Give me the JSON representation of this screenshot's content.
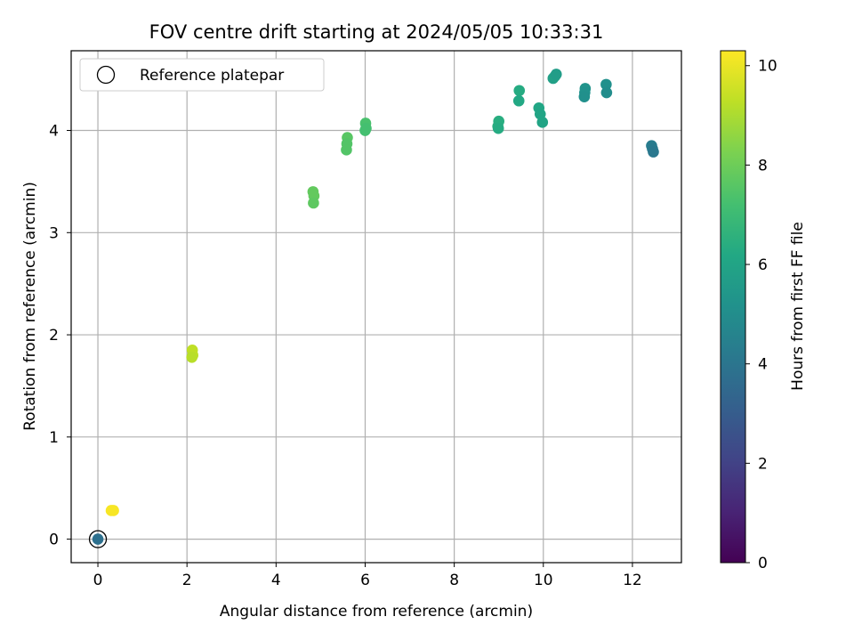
{
  "chart_data": {
    "type": "scatter",
    "title": "FOV centre drift starting at 2024/05/05 10:33:31",
    "xlabel": "Angular distance from reference (arcmin)",
    "ylabel": "Rotation from reference (arcmin)",
    "xlim": [
      -0.6,
      13.1
    ],
    "ylim": [
      -0.23,
      4.78
    ],
    "xticks": [
      0,
      2,
      4,
      6,
      8,
      10,
      12
    ],
    "yticks": [
      0,
      1,
      2,
      3,
      4
    ],
    "grid": true,
    "legend": {
      "label": "Reference platepar",
      "position": "top-left"
    },
    "reference_point": {
      "x": 0,
      "y": 0
    },
    "colorbar": {
      "label": "Hours from first FF file",
      "colormap": "viridis",
      "range": [
        0,
        10.3
      ],
      "ticks": [
        0,
        2,
        4,
        6,
        8,
        10
      ]
    },
    "points": [
      {
        "x": 0.0,
        "y": 0.0,
        "c": 3.8
      },
      {
        "x": 0.35,
        "y": 0.28,
        "c": 10.2
      },
      {
        "x": 0.3,
        "y": 0.28,
        "c": 10.2
      },
      {
        "x": 2.12,
        "y": 1.85,
        "c": 9.3
      },
      {
        "x": 2.13,
        "y": 1.8,
        "c": 9.3
      },
      {
        "x": 2.11,
        "y": 1.78,
        "c": 9.2
      },
      {
        "x": 4.83,
        "y": 3.4,
        "c": 7.8
      },
      {
        "x": 4.85,
        "y": 3.36,
        "c": 7.8
      },
      {
        "x": 4.84,
        "y": 3.29,
        "c": 7.7
      },
      {
        "x": 5.6,
        "y": 3.93,
        "c": 7.6
      },
      {
        "x": 5.59,
        "y": 3.87,
        "c": 7.5
      },
      {
        "x": 5.58,
        "y": 3.81,
        "c": 7.5
      },
      {
        "x": 6.01,
        "y": 4.07,
        "c": 7.3
      },
      {
        "x": 6.0,
        "y": 4.0,
        "c": 7.2
      },
      {
        "x": 6.02,
        "y": 4.02,
        "c": 7.2
      },
      {
        "x": 9.0,
        "y": 4.09,
        "c": 6.4
      },
      {
        "x": 8.98,
        "y": 4.04,
        "c": 6.4
      },
      {
        "x": 8.99,
        "y": 4.02,
        "c": 6.3
      },
      {
        "x": 9.46,
        "y": 4.39,
        "c": 6.3
      },
      {
        "x": 9.45,
        "y": 4.29,
        "c": 6.2
      },
      {
        "x": 9.9,
        "y": 4.22,
        "c": 6.1
      },
      {
        "x": 9.93,
        "y": 4.16,
        "c": 6.0
      },
      {
        "x": 9.98,
        "y": 4.08,
        "c": 6.0
      },
      {
        "x": 10.22,
        "y": 4.51,
        "c": 5.8
      },
      {
        "x": 10.26,
        "y": 4.53,
        "c": 5.8
      },
      {
        "x": 10.29,
        "y": 4.55,
        "c": 5.7
      },
      {
        "x": 10.94,
        "y": 4.41,
        "c": 5.3
      },
      {
        "x": 10.93,
        "y": 4.37,
        "c": 5.2
      },
      {
        "x": 10.92,
        "y": 4.33,
        "c": 5.1
      },
      {
        "x": 11.41,
        "y": 4.45,
        "c": 5.1
      },
      {
        "x": 11.42,
        "y": 4.37,
        "c": 5.0
      },
      {
        "x": 12.43,
        "y": 3.85,
        "c": 4.3
      },
      {
        "x": 12.45,
        "y": 3.82,
        "c": 4.2
      },
      {
        "x": 12.47,
        "y": 3.79,
        "c": 4.1
      }
    ]
  }
}
